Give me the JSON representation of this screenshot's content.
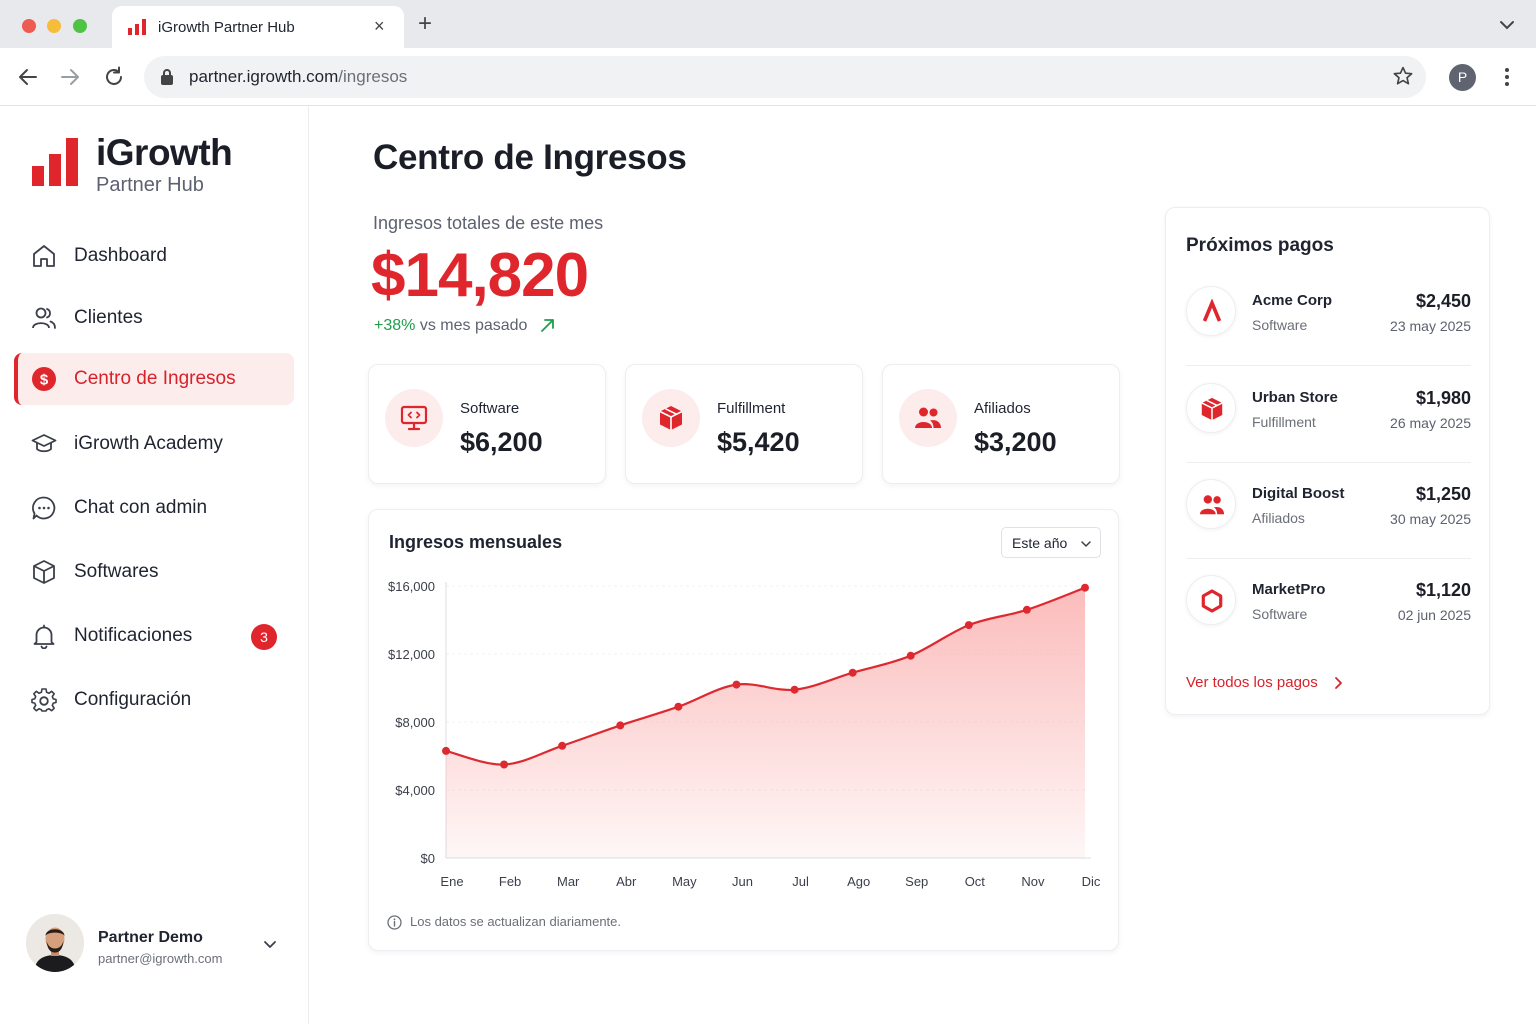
{
  "browser": {
    "tab_title": "iGrowth Partner Hub",
    "tab_close": "×",
    "new_tab": "+",
    "url_host": "partner.igrowth.com",
    "url_path": "/ingresos",
    "profile_initial": "P"
  },
  "sidebar": {
    "brand_name": "iGrowth",
    "brand_sub": "Partner Hub",
    "items": [
      {
        "label": "Dashboard",
        "icon": "home-icon"
      },
      {
        "label": "Clientes",
        "icon": "users-icon"
      },
      {
        "label": "Centro de Ingresos",
        "icon": "dollar-icon",
        "active": true
      },
      {
        "label": "iGrowth Academy",
        "icon": "graduation-cap-icon"
      },
      {
        "label": "Chat con admin",
        "icon": "chat-icon"
      },
      {
        "label": "Softwares",
        "icon": "cube-icon"
      },
      {
        "label": "Notificaciones",
        "icon": "bell-icon",
        "badge": "3"
      },
      {
        "label": "Configuración",
        "icon": "gear-icon"
      }
    ],
    "user": {
      "name": "Partner Demo",
      "email": "partner@igrowth.com"
    }
  },
  "main": {
    "title": "Centro de Ingresos",
    "total_label": "Ingresos totales de este mes",
    "total_value": "$14,820",
    "delta_pct": "+38%",
    "delta_text": " vs mes pasado",
    "stats": [
      {
        "label": "Software",
        "value": "$6,200",
        "icon": "monitor-code-icon"
      },
      {
        "label": "Fulfillment",
        "value": "$5,420",
        "icon": "box-icon"
      },
      {
        "label": "Afiliados",
        "value": "$3,200",
        "icon": "people-icon"
      }
    ],
    "chart_card": {
      "title": "Ingresos mensuales",
      "period": "Este año",
      "footnote": "Los datos se actualizan diariamente."
    }
  },
  "chart_data": {
    "type": "area",
    "title": "Ingresos mensuales",
    "categories": [
      "Ene",
      "Feb",
      "Mar",
      "Abr",
      "May",
      "Jun",
      "Jul",
      "Ago",
      "Sep",
      "Oct",
      "Nov",
      "Dic"
    ],
    "series": [
      {
        "values": [
          6300,
          5500,
          6600,
          7800,
          8900,
          10200,
          9900,
          10900,
          11900,
          13700,
          14600,
          15900
        ]
      }
    ],
    "yticks": [
      "$0",
      "$4,000",
      "$8,000",
      "$12,000",
      "$16,000"
    ],
    "ylim": [
      0,
      16000
    ],
    "grid": true,
    "line_color": "#dd2a30",
    "fill_color": "#fbb8b8"
  },
  "payments": {
    "title": "Próximos pagos",
    "items": [
      {
        "name": "Acme Corp",
        "category": "Software",
        "amount": "$2,450",
        "date": "23 may 2025",
        "icon": "acme-logo-icon"
      },
      {
        "name": "Urban Store",
        "category": "Fulfillment",
        "amount": "$1,980",
        "date": "26 may 2025",
        "icon": "box-icon"
      },
      {
        "name": "Digital Boost",
        "category": "Afiliados",
        "amount": "$1,250",
        "date": "30 may 2025",
        "icon": "people-icon"
      },
      {
        "name": "MarketPro",
        "category": "Software",
        "amount": "$1,120",
        "date": "02 jun 2025",
        "icon": "hexagon-icon"
      }
    ],
    "see_all": "Ver todos los pagos"
  },
  "colors": {
    "accent": "#e0262d",
    "positive": "#1f9d4c"
  }
}
